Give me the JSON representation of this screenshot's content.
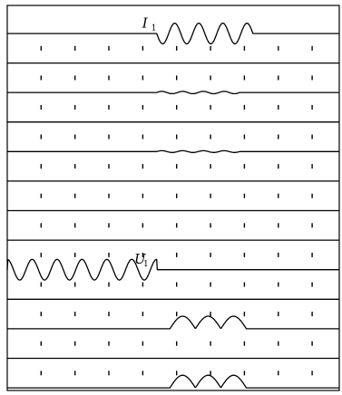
{
  "chart_data": {
    "type": "line",
    "title": "",
    "xlabel": "",
    "ylabel": "",
    "traces": 13,
    "tick_count": 9,
    "series": [
      {
        "name": "I1",
        "label_main": "I",
        "label_sub": "1",
        "shape": "sine",
        "start": 0.45,
        "end": 0.74,
        "cycles": 4,
        "amplitude": 0.7,
        "phase_start_peak": false
      },
      {
        "name": "",
        "shape": "flat"
      },
      {
        "name": "",
        "shape": "small",
        "start": 0.45,
        "end": 0.7,
        "amplitude": 0.08
      },
      {
        "name": "",
        "shape": "flat"
      },
      {
        "name": "",
        "shape": "small",
        "start": 0.45,
        "end": 0.7,
        "amplitude": 0.06
      },
      {
        "name": "",
        "shape": "flat"
      },
      {
        "name": "",
        "shape": "flat"
      },
      {
        "name": "",
        "shape": "flat"
      },
      {
        "name": "U1",
        "label_main": "U",
        "label_sub": "1",
        "shape": "sine",
        "start": 0.0,
        "end": 0.45,
        "cycles": 6,
        "amplitude": 0.7,
        "phase_start_peak": true
      },
      {
        "name": "",
        "shape": "flat"
      },
      {
        "name": "",
        "shape": "rectified",
        "start": 0.49,
        "end": 0.72,
        "cycles": 3,
        "amplitude": 0.85
      },
      {
        "name": "",
        "shape": "flat"
      },
      {
        "name": "",
        "shape": "rectified",
        "start": 0.49,
        "end": 0.72,
        "cycles": 3,
        "amplitude": 0.85
      }
    ]
  },
  "colors": {
    "frame": "#000000",
    "trace": "#000000",
    "background": "#ffffff"
  }
}
